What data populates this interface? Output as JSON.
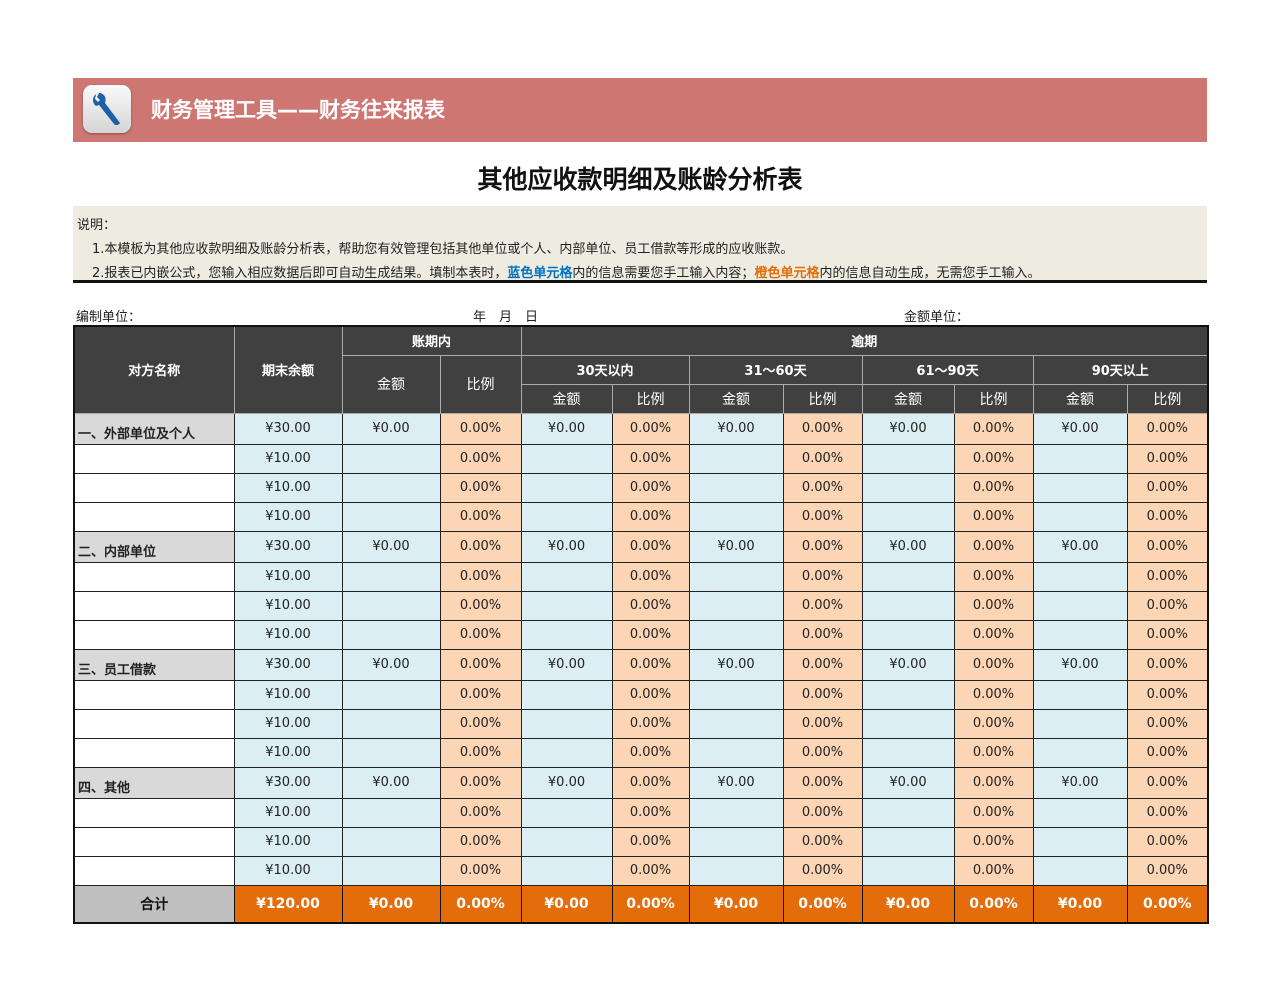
{
  "banner": {
    "icon": "wrench-icon",
    "title": "财务管理工具——财务往来报表",
    "color": "#CD7672"
  },
  "page_title": "其他应收款明细及账龄分析表",
  "notes": {
    "heading": "说明：",
    "line1": "1.本模板为其他应收款明细及账龄分析表，帮助您有效管理包括其他单位或个人、内部单位、员工借款等形成的应收账款。",
    "line2_prefix": "2.报表已内嵌公式，您输入相应数据后即可自动生成结果。填制本表时，",
    "line2_blue": "蓝色单元格",
    "line2_mid": "内的信息需要您手工输入内容；",
    "line2_orange": "橙色单元格",
    "line2_suffix": "内的信息自动生成，无需您手工输入。"
  },
  "meta": {
    "unit_label": "编制单位：",
    "date_label": "年　月　日",
    "currency_label": "金额单位："
  },
  "header": {
    "name": "对方名称",
    "balance": "期末余额",
    "in_term": "账期内",
    "overdue": "逾期",
    "buckets": [
      "30天以内",
      "31～60天",
      "61～90天",
      "90天以上"
    ],
    "amount": "金额",
    "ratio": "比例"
  },
  "rows": [
    {
      "name": "一、外部单位及个人",
      "group": true,
      "balance": "¥30.00",
      "cells": [
        "¥0.00",
        "0.00%",
        "¥0.00",
        "0.00%",
        "¥0.00",
        "0.00%",
        "¥0.00",
        "0.00%",
        "¥0.00",
        "0.00%"
      ]
    },
    {
      "name": "",
      "group": false,
      "balance": "¥10.00",
      "cells": [
        "",
        "0.00%",
        "",
        "0.00%",
        "",
        "0.00%",
        "",
        "0.00%",
        "",
        "0.00%"
      ]
    },
    {
      "name": "",
      "group": false,
      "balance": "¥10.00",
      "cells": [
        "",
        "0.00%",
        "",
        "0.00%",
        "",
        "0.00%",
        "",
        "0.00%",
        "",
        "0.00%"
      ]
    },
    {
      "name": "",
      "group": false,
      "balance": "¥10.00",
      "cells": [
        "",
        "0.00%",
        "",
        "0.00%",
        "",
        "0.00%",
        "",
        "0.00%",
        "",
        "0.00%"
      ]
    },
    {
      "name": "二、内部单位",
      "group": true,
      "balance": "¥30.00",
      "cells": [
        "¥0.00",
        "0.00%",
        "¥0.00",
        "0.00%",
        "¥0.00",
        "0.00%",
        "¥0.00",
        "0.00%",
        "¥0.00",
        "0.00%"
      ]
    },
    {
      "name": "",
      "group": false,
      "balance": "¥10.00",
      "cells": [
        "",
        "0.00%",
        "",
        "0.00%",
        "",
        "0.00%",
        "",
        "0.00%",
        "",
        "0.00%"
      ]
    },
    {
      "name": "",
      "group": false,
      "balance": "¥10.00",
      "cells": [
        "",
        "0.00%",
        "",
        "0.00%",
        "",
        "0.00%",
        "",
        "0.00%",
        "",
        "0.00%"
      ]
    },
    {
      "name": "",
      "group": false,
      "balance": "¥10.00",
      "cells": [
        "",
        "0.00%",
        "",
        "0.00%",
        "",
        "0.00%",
        "",
        "0.00%",
        "",
        "0.00%"
      ]
    },
    {
      "name": "三、员工借款",
      "group": true,
      "balance": "¥30.00",
      "cells": [
        "¥0.00",
        "0.00%",
        "¥0.00",
        "0.00%",
        "¥0.00",
        "0.00%",
        "¥0.00",
        "0.00%",
        "¥0.00",
        "0.00%"
      ]
    },
    {
      "name": "",
      "group": false,
      "balance": "¥10.00",
      "cells": [
        "",
        "0.00%",
        "",
        "0.00%",
        "",
        "0.00%",
        "",
        "0.00%",
        "",
        "0.00%"
      ]
    },
    {
      "name": "",
      "group": false,
      "balance": "¥10.00",
      "cells": [
        "",
        "0.00%",
        "",
        "0.00%",
        "",
        "0.00%",
        "",
        "0.00%",
        "",
        "0.00%"
      ]
    },
    {
      "name": "",
      "group": false,
      "balance": "¥10.00",
      "cells": [
        "",
        "0.00%",
        "",
        "0.00%",
        "",
        "0.00%",
        "",
        "0.00%",
        "",
        "0.00%"
      ]
    },
    {
      "name": "四、其他",
      "group": true,
      "balance": "¥30.00",
      "cells": [
        "¥0.00",
        "0.00%",
        "¥0.00",
        "0.00%",
        "¥0.00",
        "0.00%",
        "¥0.00",
        "0.00%",
        "¥0.00",
        "0.00%"
      ]
    },
    {
      "name": "",
      "group": false,
      "balance": "¥10.00",
      "cells": [
        "",
        "0.00%",
        "",
        "0.00%",
        "",
        "0.00%",
        "",
        "0.00%",
        "",
        "0.00%"
      ]
    },
    {
      "name": "",
      "group": false,
      "balance": "¥10.00",
      "cells": [
        "",
        "0.00%",
        "",
        "0.00%",
        "",
        "0.00%",
        "",
        "0.00%",
        "",
        "0.00%"
      ]
    },
    {
      "name": "",
      "group": false,
      "balance": "¥10.00",
      "cells": [
        "",
        "0.00%",
        "",
        "0.00%",
        "",
        "0.00%",
        "",
        "0.00%",
        "",
        "0.00%"
      ]
    }
  ],
  "total": {
    "label": "合计",
    "balance": "¥120.00",
    "cells": [
      "¥0.00",
      "0.00%",
      "¥0.00",
      "0.00%",
      "¥0.00",
      "0.00%",
      "¥0.00",
      "0.00%",
      "¥0.00",
      "0.00%"
    ]
  },
  "colors": {
    "header_bg": "#404040",
    "input_blue": "#DAEEF3",
    "auto_orange": "#FCD5B4",
    "total_orange": "#E46C0A",
    "group_gray": "#D9D9D9"
  }
}
